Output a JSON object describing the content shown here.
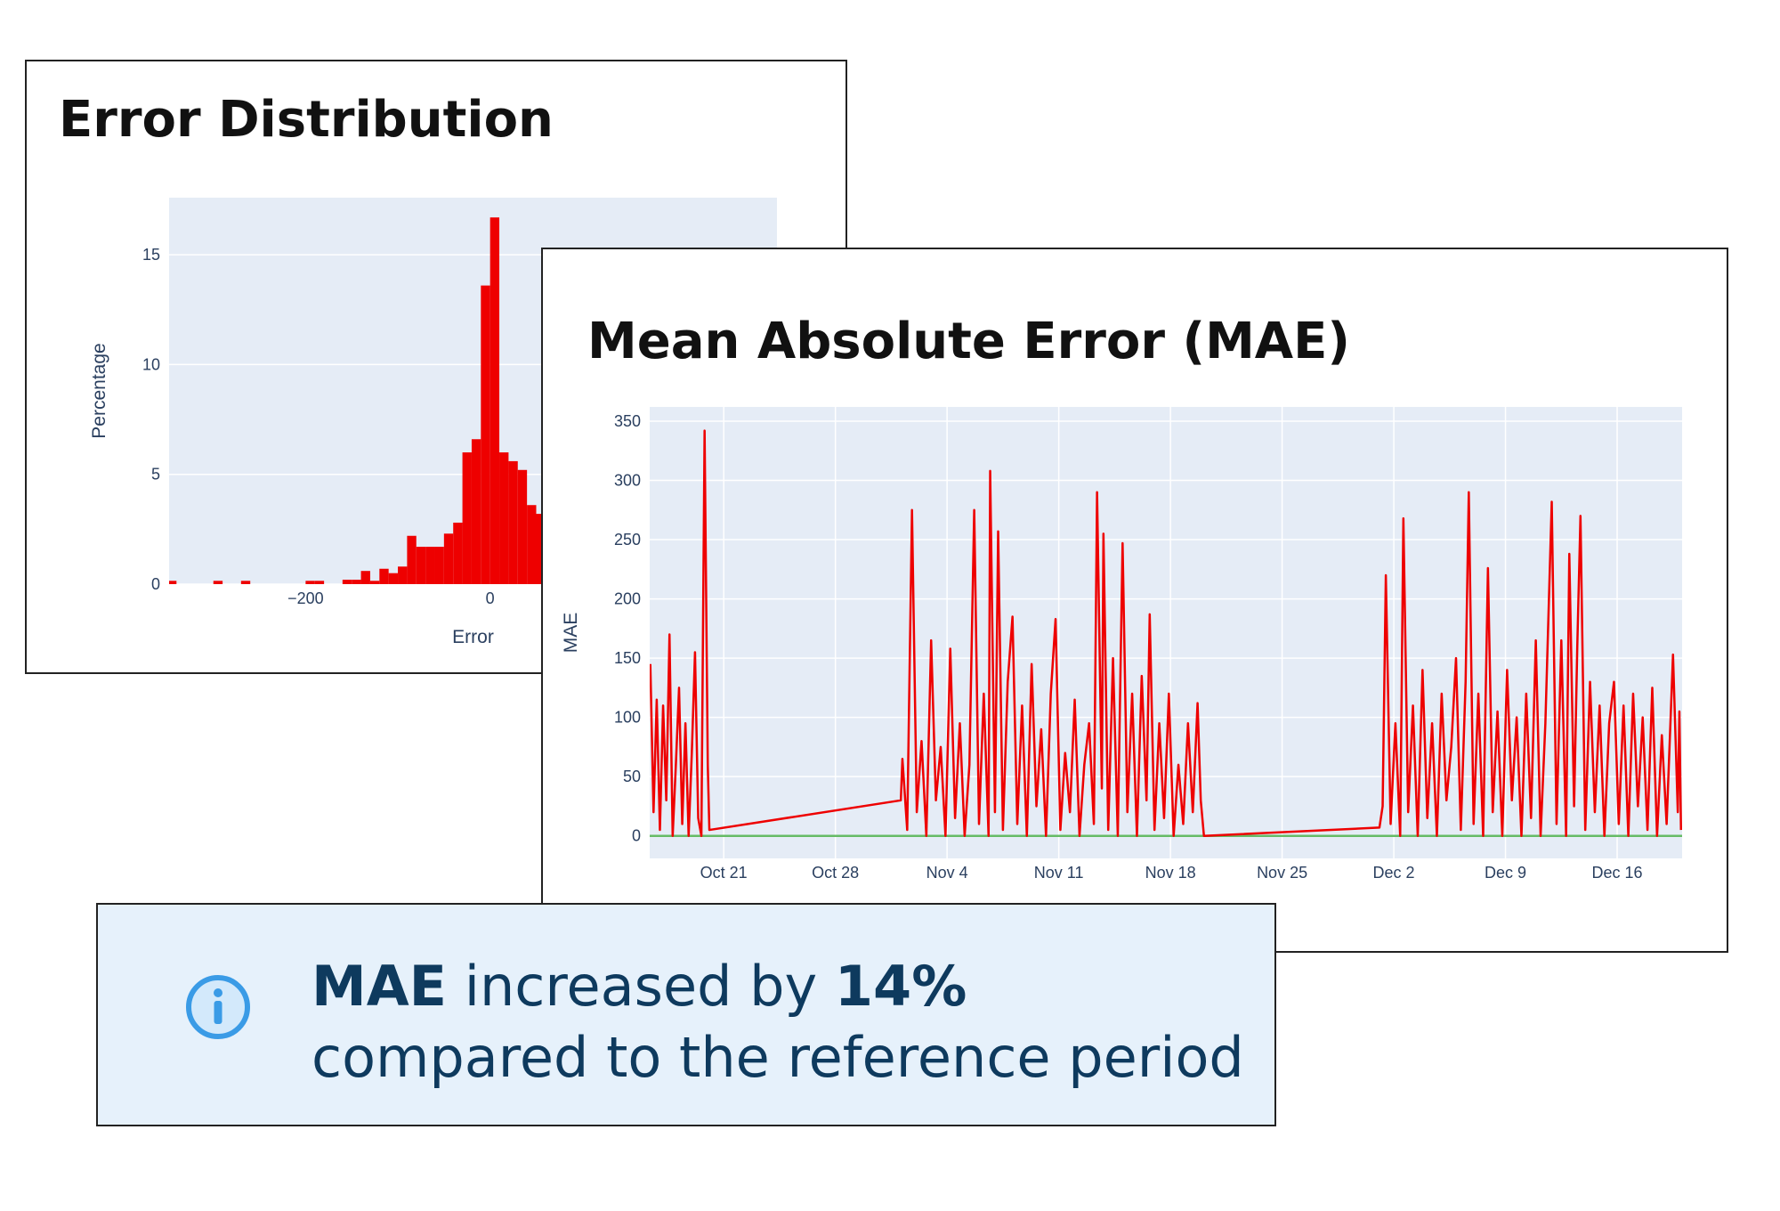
{
  "chart_data": [
    {
      "type": "histogram",
      "title": "Error Distribution",
      "x_label": "Error",
      "y_label": "Percentage",
      "color": "#ee0000",
      "bins": [
        -350,
        -340,
        -330,
        -320,
        -310,
        -300,
        -290,
        -280,
        -270,
        -260,
        -250,
        -240,
        -230,
        -220,
        -210,
        -200,
        -190,
        -180,
        -170,
        -160,
        -150,
        -140,
        -130,
        -120,
        -110,
        -100,
        -90,
        -80,
        -70,
        -60,
        -50,
        -40,
        -30,
        -20,
        -10,
        0,
        10,
        20,
        30,
        40,
        50,
        60
      ],
      "values": [
        0.15,
        0,
        0,
        0,
        0,
        0.15,
        0,
        0,
        0.15,
        0,
        0,
        0,
        0,
        0,
        0,
        0.15,
        0.15,
        0,
        0,
        0.2,
        0.2,
        0.6,
        0.15,
        0.7,
        0.5,
        0.8,
        2.2,
        1.7,
        1.7,
        1.7,
        2.3,
        2.8,
        6.0,
        6.6,
        13.6,
        16.7,
        6.0,
        5.6,
        5.2,
        3.6,
        3.2
      ],
      "xlim": [
        -348,
        311
      ],
      "ylim": [
        0,
        17.6
      ],
      "xticks": [
        {
          "value": -200,
          "label": "−200"
        },
        0
      ],
      "yticks": [
        0,
        5,
        10,
        15
      ],
      "grid": true
    },
    {
      "type": "line",
      "title": "Mean Absolute Error (MAE)",
      "y_label": "MAE",
      "xlim": [
        16.36,
        81.07
      ],
      "ylim": [
        -19,
        362
      ],
      "xticks": [
        {
          "value": 21,
          "label": "Oct 21"
        },
        {
          "value": 28,
          "label": "Oct 28"
        },
        {
          "value": 35,
          "label": "Nov 4"
        },
        {
          "value": 42,
          "label": "Nov 11"
        },
        {
          "value": 49,
          "label": "Nov 18"
        },
        {
          "value": 56,
          "label": "Nov 25"
        },
        {
          "value": 63,
          "label": "Dec 2"
        },
        {
          "value": 70,
          "label": "Dec 9"
        },
        {
          "value": 77,
          "label": "Dec 16"
        }
      ],
      "yticks": [
        0,
        50,
        100,
        150,
        200,
        250,
        300,
        350
      ],
      "grid": true,
      "series": [
        {
          "color": "#66bb66",
          "x": [
            16.36,
            81.07
          ],
          "values": [
            0,
            0
          ]
        },
        {
          "color": "#ee0000",
          "x": [
            16.4,
            16.6,
            16.8,
            17.0,
            17.2,
            17.4,
            17.6,
            17.8,
            18.0,
            18.2,
            18.4,
            18.6,
            18.8,
            19.0,
            19.2,
            19.4,
            19.6,
            19.8,
            20.0,
            20.1,
            32.1,
            32.2,
            32.5,
            32.8,
            33.1,
            33.4,
            33.7,
            34.0,
            34.3,
            34.6,
            34.9,
            35.2,
            35.5,
            35.8,
            36.1,
            36.4,
            36.7,
            37.0,
            37.3,
            37.6,
            37.7,
            38.0,
            38.2,
            38.5,
            38.8,
            39.1,
            39.4,
            39.7,
            40.0,
            40.3,
            40.6,
            40.9,
            41.2,
            41.5,
            41.8,
            42.1,
            42.4,
            42.7,
            43.0,
            43.3,
            43.6,
            43.9,
            44.2,
            44.4,
            44.7,
            44.8,
            45.1,
            45.4,
            45.7,
            46.0,
            46.3,
            46.6,
            46.9,
            47.2,
            47.5,
            47.7,
            48.0,
            48.3,
            48.6,
            48.9,
            49.2,
            49.5,
            49.8,
            50.1,
            50.4,
            50.7,
            50.9,
            51.1,
            62.1,
            62.3,
            62.5,
            62.8,
            63.1,
            63.4,
            63.6,
            63.9,
            64.2,
            64.5,
            64.8,
            65.1,
            65.4,
            65.7,
            66.0,
            66.3,
            66.6,
            66.9,
            67.2,
            67.5,
            67.7,
            68.0,
            68.3,
            68.6,
            68.9,
            69.2,
            69.5,
            69.8,
            70.1,
            70.4,
            70.7,
            71.0,
            71.3,
            71.6,
            71.9,
            72.2,
            72.5,
            72.9,
            73.2,
            73.5,
            73.8,
            74.0,
            74.3,
            74.5,
            74.7,
            75.0,
            75.3,
            75.6,
            75.9,
            76.2,
            76.5,
            76.8,
            77.1,
            77.4,
            77.7,
            78.0,
            78.3,
            78.6,
            78.9,
            79.2,
            79.5,
            79.8,
            80.1,
            80.5,
            80.8,
            80.9,
            81.0
          ],
          "values": [
            145,
            20,
            115,
            5,
            110,
            30,
            170,
            0,
            60,
            125,
            10,
            95,
            0,
            70,
            155,
            15,
            0,
            342,
            60,
            5,
            30,
            65,
            5,
            275,
            20,
            80,
            0,
            165,
            30,
            75,
            0,
            158,
            15,
            95,
            0,
            60,
            275,
            10,
            120,
            0,
            308,
            20,
            257,
            5,
            130,
            185,
            10,
            110,
            0,
            145,
            25,
            90,
            0,
            120,
            183,
            5,
            70,
            20,
            115,
            0,
            60,
            95,
            10,
            290,
            40,
            255,
            5,
            150,
            0,
            247,
            20,
            120,
            0,
            135,
            30,
            187,
            5,
            95,
            15,
            120,
            0,
            60,
            10,
            95,
            20,
            112,
            30,
            0,
            7,
            25,
            220,
            10,
            95,
            0,
            268,
            20,
            110,
            0,
            140,
            15,
            95,
            0,
            120,
            30,
            75,
            150,
            5,
            130,
            290,
            10,
            120,
            0,
            226,
            20,
            105,
            0,
            140,
            30,
            100,
            0,
            120,
            15,
            165,
            0,
            95,
            282,
            10,
            165,
            0,
            238,
            25,
            160,
            270,
            5,
            130,
            20,
            110,
            0,
            95,
            130,
            10,
            110,
            0,
            120,
            25,
            100,
            5,
            125,
            0,
            85,
            10,
            153,
            20,
            105,
            5
          ]
        }
      ]
    }
  ],
  "callout": {
    "metric": "MAE",
    "text1": "increased by",
    "change": "14%",
    "text2": "compared to the reference period"
  }
}
